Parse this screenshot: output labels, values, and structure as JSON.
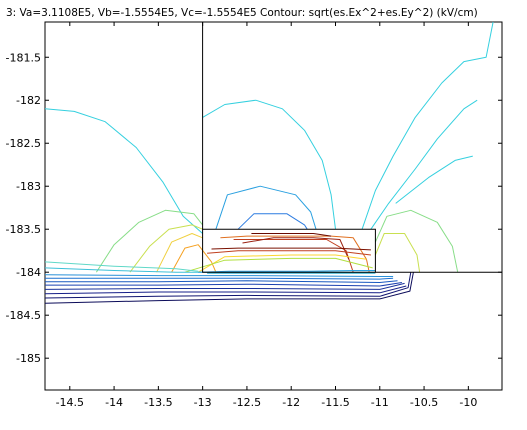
{
  "title": "3: Va=3.1108E5, Vb=-1.5554E5, Vc=-1.5554E5    Contour: sqrt(es.Ex^2+es.Ey^2) (kV/cm)",
  "chart_data": {
    "type": "contour",
    "title": "3: Va=3.1108E5, Vb=-1.5554E5, Vc=-1.5554E5    Contour: sqrt(es.Ex^2+es.Ey^2) (kV/cm)",
    "xlabel": "",
    "ylabel": "",
    "xlim": [
      -14.78,
      -9.62
    ],
    "ylim": [
      -185.37,
      -181.09
    ],
    "x_ticks": [
      -14.5,
      -14,
      -13.5,
      -13,
      -12.5,
      -12,
      -11.5,
      -11,
      -10.5,
      -10
    ],
    "x_tick_labels": [
      "-14.5",
      "-14",
      "-13.5",
      "-13",
      "-12.5",
      "-12",
      "-11.5",
      "-11",
      "-10.5",
      "-10"
    ],
    "y_ticks": [
      -181.5,
      -182,
      -182.5,
      -183,
      -183.5,
      -184,
      -184.5,
      -185
    ],
    "y_tick_labels": [
      "-181.5",
      "-182",
      "-182.5",
      "-183",
      "-183.5",
      "-184",
      "-184.5",
      "-185"
    ],
    "grid": false,
    "legend": "none",
    "geometry": [
      {
        "name": "vertical-boundary",
        "points": [
          [
            -13.0,
            -181.09
          ],
          [
            -13.0,
            -183.5
          ]
        ]
      },
      {
        "name": "conductor-box",
        "points": [
          [
            -13.0,
            -183.5
          ],
          [
            -11.05,
            -183.5
          ],
          [
            -11.05,
            -184.0
          ],
          [
            -13.0,
            -184.0
          ]
        ]
      },
      {
        "name": "ground-boundary",
        "points": [
          [
            -11.05,
            -184.0
          ],
          [
            -9.62,
            -184.0
          ]
        ]
      }
    ],
    "series": [
      {
        "color": "#35d0df",
        "values": [
          [
            -14.78,
            -182.1
          ],
          [
            -14.45,
            -182.13
          ],
          [
            -14.1,
            -182.25
          ],
          [
            -13.75,
            -182.55
          ],
          [
            -13.45,
            -182.95
          ],
          [
            -13.22,
            -183.35
          ],
          [
            -13.0,
            -183.55
          ]
        ]
      },
      {
        "color": "#35d0df",
        "values": [
          [
            -13.0,
            -182.2
          ],
          [
            -12.75,
            -182.05
          ],
          [
            -12.4,
            -182.0
          ],
          [
            -12.1,
            -182.1
          ],
          [
            -11.85,
            -182.35
          ],
          [
            -11.65,
            -182.7
          ],
          [
            -11.55,
            -183.1
          ],
          [
            -11.5,
            -183.5
          ]
        ]
      },
      {
        "color": "#35d0df",
        "values": [
          [
            -11.2,
            -183.5
          ],
          [
            -11.05,
            -183.05
          ],
          [
            -10.85,
            -182.65
          ],
          [
            -10.6,
            -182.2
          ],
          [
            -10.3,
            -181.8
          ],
          [
            -10.05,
            -181.55
          ],
          [
            -9.8,
            -181.5
          ],
          [
            -9.72,
            -181.09
          ]
        ]
      },
      {
        "color": "#35d0df",
        "values": [
          [
            -11.1,
            -183.5
          ],
          [
            -10.9,
            -183.2
          ],
          [
            -10.6,
            -182.8
          ],
          [
            -10.35,
            -182.45
          ],
          [
            -10.05,
            -182.1
          ],
          [
            -9.9,
            -182.0
          ]
        ]
      },
      {
        "color": "#35d0df",
        "values": [
          [
            -10.82,
            -183.2
          ],
          [
            -10.45,
            -182.9
          ],
          [
            -10.15,
            -182.7
          ],
          [
            -9.95,
            -182.65
          ]
        ]
      },
      {
        "color": "#2aa0e0",
        "values": [
          [
            -12.85,
            -183.5
          ],
          [
            -12.72,
            -183.1
          ],
          [
            -12.35,
            -183.0
          ],
          [
            -11.95,
            -183.1
          ],
          [
            -11.78,
            -183.3
          ],
          [
            -11.72,
            -183.5
          ]
        ]
      },
      {
        "color": "#2c7be0",
        "values": [
          [
            -12.6,
            -183.5
          ],
          [
            -12.42,
            -183.32
          ],
          [
            -12.05,
            -183.32
          ],
          [
            -11.85,
            -183.45
          ],
          [
            -11.82,
            -183.5
          ]
        ]
      },
      {
        "color": "#88dd88",
        "values": [
          [
            -14.2,
            -184.0
          ],
          [
            -14.0,
            -183.68
          ],
          [
            -13.72,
            -183.42
          ],
          [
            -13.42,
            -183.28
          ],
          [
            -13.1,
            -183.32
          ],
          [
            -13.0,
            -183.45
          ]
        ]
      },
      {
        "color": "#c9e050",
        "values": [
          [
            -13.82,
            -184.0
          ],
          [
            -13.6,
            -183.7
          ],
          [
            -13.38,
            -183.5
          ],
          [
            -13.12,
            -183.45
          ],
          [
            -13.0,
            -183.5
          ]
        ]
      },
      {
        "color": "#88dd88",
        "values": [
          [
            -11.05,
            -183.65
          ],
          [
            -10.92,
            -183.35
          ],
          [
            -10.65,
            -183.28
          ],
          [
            -10.35,
            -183.42
          ],
          [
            -10.18,
            -183.7
          ],
          [
            -10.12,
            -184.0
          ]
        ]
      },
      {
        "color": "#c9e050",
        "values": [
          [
            -11.05,
            -183.8
          ],
          [
            -10.95,
            -183.55
          ],
          [
            -10.72,
            -183.55
          ],
          [
            -10.58,
            -183.8
          ],
          [
            -10.55,
            -184.0
          ]
        ]
      },
      {
        "color": "#f0d040",
        "values": [
          [
            -13.52,
            -184.0
          ],
          [
            -13.35,
            -183.65
          ],
          [
            -13.12,
            -183.55
          ],
          [
            -13.0,
            -183.6
          ]
        ]
      },
      {
        "color": "#f5a020",
        "values": [
          [
            -13.35,
            -184.0
          ],
          [
            -13.2,
            -183.72
          ],
          [
            -13.05,
            -183.68
          ],
          [
            -12.9,
            -183.88
          ],
          [
            -12.85,
            -184.0
          ]
        ]
      },
      {
        "color": "#e07020",
        "values": [
          [
            -12.8,
            -183.6
          ],
          [
            -12.5,
            -183.58
          ],
          [
            -12.0,
            -183.58
          ],
          [
            -11.55,
            -183.58
          ],
          [
            -11.3,
            -183.6
          ],
          [
            -11.15,
            -183.85
          ],
          [
            -11.12,
            -184.0
          ]
        ]
      },
      {
        "color": "#c04020",
        "values": [
          [
            -12.65,
            -183.62
          ],
          [
            -12.35,
            -183.62
          ],
          [
            -12.0,
            -183.62
          ],
          [
            -11.6,
            -183.62
          ],
          [
            -11.38,
            -183.75
          ],
          [
            -11.3,
            -184.0
          ]
        ]
      },
      {
        "color": "#9a2010",
        "values": [
          [
            -12.55,
            -183.66
          ],
          [
            -12.2,
            -183.6
          ],
          [
            -11.75,
            -183.6
          ],
          [
            -11.45,
            -183.62
          ],
          [
            -11.35,
            -183.85
          ]
        ]
      },
      {
        "color": "#6a0a00",
        "values": [
          [
            -12.45,
            -183.55
          ],
          [
            -12.1,
            -183.55
          ],
          [
            -11.75,
            -183.55
          ],
          [
            -11.55,
            -183.58
          ]
        ]
      },
      {
        "color": "#fcd630",
        "values": [
          [
            -13.05,
            -184.0
          ],
          [
            -12.75,
            -183.82
          ],
          [
            -12.0,
            -183.8
          ],
          [
            -11.5,
            -183.8
          ],
          [
            -11.15,
            -183.85
          ]
        ]
      },
      {
        "color": "#b0e040",
        "values": [
          [
            -13.2,
            -184.0
          ],
          [
            -12.75,
            -183.86
          ],
          [
            -12.0,
            -183.84
          ],
          [
            -11.5,
            -183.84
          ],
          [
            -11.08,
            -183.95
          ]
        ]
      },
      {
        "color": "#c04020",
        "values": [
          [
            -12.95,
            -183.78
          ],
          [
            -12.6,
            -183.75
          ],
          [
            -12.0,
            -183.75
          ],
          [
            -11.5,
            -183.75
          ],
          [
            -11.1,
            -183.8
          ]
        ]
      },
      {
        "color": "#7a1000",
        "values": [
          [
            -12.9,
            -183.73
          ],
          [
            -12.6,
            -183.72
          ],
          [
            -12.0,
            -183.72
          ],
          [
            -11.5,
            -183.72
          ],
          [
            -11.1,
            -183.74
          ]
        ]
      },
      {
        "color": "#60d8c8",
        "values": [
          [
            -14.78,
            -183.88
          ],
          [
            -14.0,
            -183.93
          ],
          [
            -13.3,
            -183.96
          ],
          [
            -13.05,
            -183.99
          ]
        ]
      },
      {
        "color": "#3dc0d8",
        "values": [
          [
            -14.78,
            -183.95
          ],
          [
            -14.0,
            -183.98
          ],
          [
            -13.3,
            -184.0
          ],
          [
            -12.8,
            -184.0
          ],
          [
            -11.05,
            -184.0
          ]
        ]
      },
      {
        "color": "#2890d8",
        "values": [
          [
            -14.78,
            -184.03
          ],
          [
            -13.5,
            -184.04
          ],
          [
            -12.5,
            -184.04
          ],
          [
            -11.0,
            -184.05
          ],
          [
            -10.85,
            -184.05
          ]
        ]
      },
      {
        "color": "#1a70d0",
        "values": [
          [
            -14.78,
            -184.07
          ],
          [
            -13.5,
            -184.07
          ],
          [
            -12.5,
            -184.07
          ],
          [
            -11.0,
            -184.08
          ],
          [
            -10.85,
            -184.07
          ]
        ]
      },
      {
        "color": "#1858c0",
        "values": [
          [
            -14.78,
            -184.11
          ],
          [
            -13.5,
            -184.11
          ],
          [
            -12.5,
            -184.1
          ],
          [
            -11.0,
            -184.12
          ],
          [
            -10.8,
            -184.1
          ]
        ]
      },
      {
        "color": "#1a40b0",
        "values": [
          [
            -14.78,
            -184.15
          ],
          [
            -13.5,
            -184.15
          ],
          [
            -12.5,
            -184.14
          ],
          [
            -11.0,
            -184.16
          ],
          [
            -10.75,
            -184.12
          ]
        ]
      },
      {
        "color": "#18309a",
        "values": [
          [
            -14.78,
            -184.2
          ],
          [
            -13.5,
            -184.19
          ],
          [
            -12.5,
            -184.19
          ],
          [
            -11.0,
            -184.2
          ],
          [
            -10.72,
            -184.13
          ]
        ]
      },
      {
        "color": "#161f88",
        "values": [
          [
            -14.78,
            -184.25
          ],
          [
            -13.5,
            -184.23
          ],
          [
            -12.5,
            -184.23
          ],
          [
            -11.0,
            -184.24
          ],
          [
            -10.7,
            -184.16
          ]
        ]
      },
      {
        "color": "#101470",
        "values": [
          [
            -14.78,
            -184.3
          ],
          [
            -13.5,
            -184.28
          ],
          [
            -12.5,
            -184.27
          ],
          [
            -11.0,
            -184.28
          ],
          [
            -10.68,
            -184.18
          ],
          [
            -10.65,
            -184.0
          ]
        ]
      },
      {
        "color": "#0c0c5a",
        "values": [
          [
            -14.78,
            -184.36
          ],
          [
            -13.5,
            -184.33
          ],
          [
            -12.5,
            -184.31
          ],
          [
            -11.0,
            -184.31
          ],
          [
            -10.66,
            -184.22
          ],
          [
            -10.62,
            -184.0
          ]
        ]
      },
      {
        "color": "#2aa0e0",
        "values": [
          [
            -13.05,
            -184.0
          ],
          [
            -12.7,
            -183.99
          ],
          [
            -12.3,
            -183.99
          ],
          [
            -11.8,
            -183.99
          ],
          [
            -11.3,
            -183.98
          ],
          [
            -11.05,
            -183.98
          ]
        ]
      },
      {
        "color": "#10a0c0",
        "values": [
          [
            -12.95,
            -184.01
          ],
          [
            -12.5,
            -184.01
          ],
          [
            -12.0,
            -184.01
          ],
          [
            -11.5,
            -184.01
          ],
          [
            -11.05,
            -184.01
          ]
        ]
      }
    ]
  }
}
